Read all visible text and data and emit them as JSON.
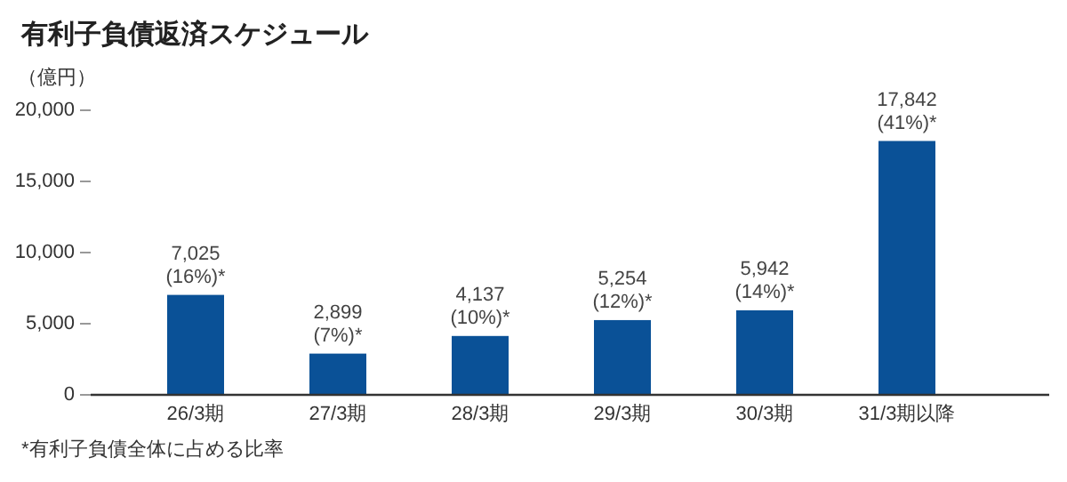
{
  "chart_data": {
    "type": "bar",
    "title": "有利子負債返済スケジュール",
    "ylabel": "（億円）",
    "categories": [
      "26/3期",
      "27/3期",
      "28/3期",
      "29/3期",
      "30/3期",
      "31/3期以降"
    ],
    "values": [
      7025,
      2899,
      4137,
      5254,
      5942,
      17842
    ],
    "value_labels": [
      "7,025\n(16%)*",
      "2,899\n(7%)*",
      "4,137\n(10%)*",
      "5,254\n(12%)*",
      "5,942\n(14%)*",
      "17,842\n(41%)*"
    ],
    "color": "#0a5197",
    "ylim": [
      0,
      20000
    ],
    "yticks": [
      {
        "value": 0,
        "label": "0"
      },
      {
        "value": 5000,
        "label": "5,000"
      },
      {
        "value": 10000,
        "label": "10,000"
      },
      {
        "value": 15000,
        "label": "15,000"
      },
      {
        "value": 20000,
        "label": "20,000"
      }
    ],
    "grid": false,
    "annotations": [
      "*有利子負債全体に占める比率"
    ]
  }
}
